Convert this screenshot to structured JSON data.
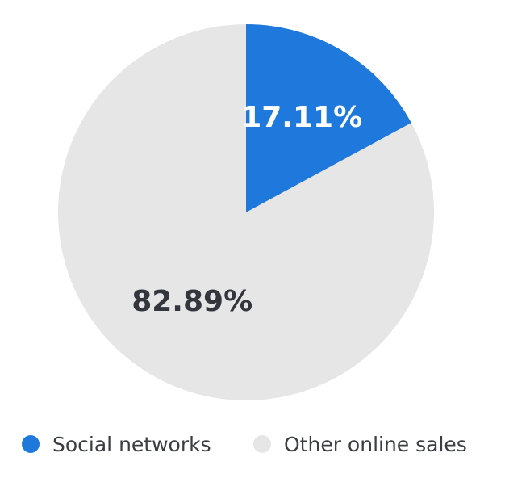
{
  "chart_data": {
    "type": "pie",
    "slices": [
      {
        "label": "Social networks",
        "value": 17.11,
        "display": "17.11%",
        "color": "#1f78dc",
        "label_color": "#ffffff"
      },
      {
        "label": "Other online sales",
        "value": 82.89,
        "display": "82.89%",
        "color": "#e6e6e6",
        "label_color": "#33373d"
      }
    ],
    "start_angle_deg": 0,
    "direction": "clockwise",
    "legend_position": "bottom"
  }
}
